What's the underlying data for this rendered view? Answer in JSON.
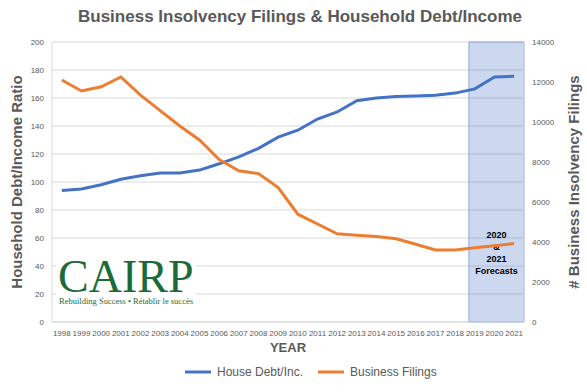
{
  "chart_data": {
    "type": "line",
    "title": "Business Insolvency Filings & Household Debt/Income",
    "x_label": "YEAR",
    "y_label": "Household Debt/Income Ratio",
    "y2_label": "# Business Insolvency Filings",
    "x": [
      1998,
      1999,
      2000,
      2001,
      2002,
      2003,
      2004,
      2005,
      2006,
      2007,
      2008,
      2009,
      2010,
      2011,
      2012,
      2013,
      2014,
      2015,
      2016,
      2017,
      2018,
      2019,
      2020,
      2021
    ],
    "xlim": [
      1997.5,
      2021.5
    ],
    "xticks": [
      1998,
      1999,
      2000,
      2001,
      2002,
      2003,
      2004,
      2005,
      2006,
      2007,
      2008,
      2009,
      2010,
      2011,
      2012,
      2013,
      2014,
      2015,
      2016,
      2017,
      2018,
      2019,
      2020,
      2021
    ],
    "ylim": [
      0,
      200
    ],
    "yticks": [
      0,
      20,
      40,
      60,
      80,
      100,
      120,
      140,
      160,
      180,
      200
    ],
    "y2lim": [
      0,
      14000
    ],
    "y2ticks": [
      0,
      2000,
      4000,
      6000,
      8000,
      10000,
      12000,
      14000
    ],
    "series": [
      {
        "name": "House Debt/Inc.",
        "color": "#4472c4",
        "values": [
          94,
          95,
          98,
          102,
          104.5,
          106.5,
          106.5,
          108.5,
          113,
          118,
          124,
          132,
          137,
          145,
          150,
          158,
          160,
          161,
          161.5,
          162,
          163.5,
          166.5,
          175,
          175.5
        ]
      },
      {
        "name": "Business Filings",
        "color": "#ed7d31",
        "axis": "y2",
        "values": [
          12100,
          11550,
          11760,
          12250,
          11340,
          10570,
          9800,
          9100,
          8120,
          7560,
          7420,
          6720,
          5390,
          4900,
          4410,
          4340,
          4270,
          4165,
          3885,
          3605,
          3605,
          3710,
          3815,
          3920
        ]
      }
    ],
    "grid": true,
    "legend": "bottom",
    "annotations": [
      {
        "text": "2020 & 2021 Forecasts",
        "x_range": [
          2018.7,
          2021.5
        ]
      }
    ],
    "logo": {
      "text": "CAIRP",
      "tagline": "Rebuilding Success • Rétablir le succès"
    }
  }
}
